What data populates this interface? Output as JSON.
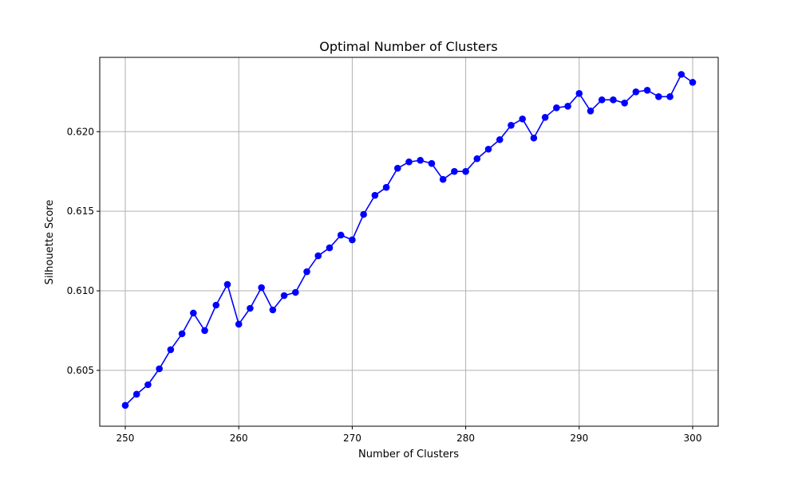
{
  "chart_data": {
    "type": "line",
    "title": "Optimal Number of Clusters",
    "xlabel": "Number of Clusters",
    "ylabel": "Silhouette Score",
    "xlim": [
      247.75,
      302.25
    ],
    "ylim": [
      0.60149,
      0.62467
    ],
    "grid": true,
    "colors": {
      "line": "#0000ff",
      "marker": "#0000ff",
      "grid": "#b0b0b0",
      "axes": "#000000"
    },
    "x_ticks": [
      250,
      260,
      270,
      280,
      290,
      300
    ],
    "x_tick_labels": [
      "250",
      "260",
      "270",
      "280",
      "290",
      "300"
    ],
    "y_ticks": [
      0.605,
      0.61,
      0.615,
      0.62
    ],
    "y_tick_labels": [
      "0.605",
      "0.610",
      "0.615",
      "0.620"
    ],
    "series": [
      {
        "marker": "circle",
        "x": [
          250,
          251,
          252,
          253,
          254,
          255,
          256,
          257,
          258,
          259,
          260,
          261,
          262,
          263,
          264,
          265,
          266,
          267,
          268,
          269,
          270,
          271,
          272,
          273,
          274,
          275,
          276,
          277,
          278,
          279,
          280,
          281,
          282,
          283,
          284,
          285,
          286,
          287,
          288,
          289,
          290,
          291,
          292,
          293,
          294,
          295,
          296,
          297,
          298,
          299,
          300
        ],
        "values": [
          0.6028,
          0.6035,
          0.6041,
          0.6051,
          0.6063,
          0.6073,
          0.6086,
          0.6075,
          0.6091,
          0.6104,
          0.6079,
          0.6089,
          0.6102,
          0.6088,
          0.6097,
          0.6099,
          0.6112,
          0.6122,
          0.6127,
          0.6135,
          0.6132,
          0.6148,
          0.616,
          0.6165,
          0.6177,
          0.6181,
          0.6182,
          0.618,
          0.617,
          0.6175,
          0.6175,
          0.6183,
          0.6189,
          0.6195,
          0.6204,
          0.6208,
          0.6196,
          0.6209,
          0.6215,
          0.6216,
          0.6224,
          0.6213,
          0.622,
          0.622,
          0.6218,
          0.6225,
          0.6226,
          0.6222,
          0.6222,
          0.6236,
          0.6231
        ]
      }
    ]
  }
}
